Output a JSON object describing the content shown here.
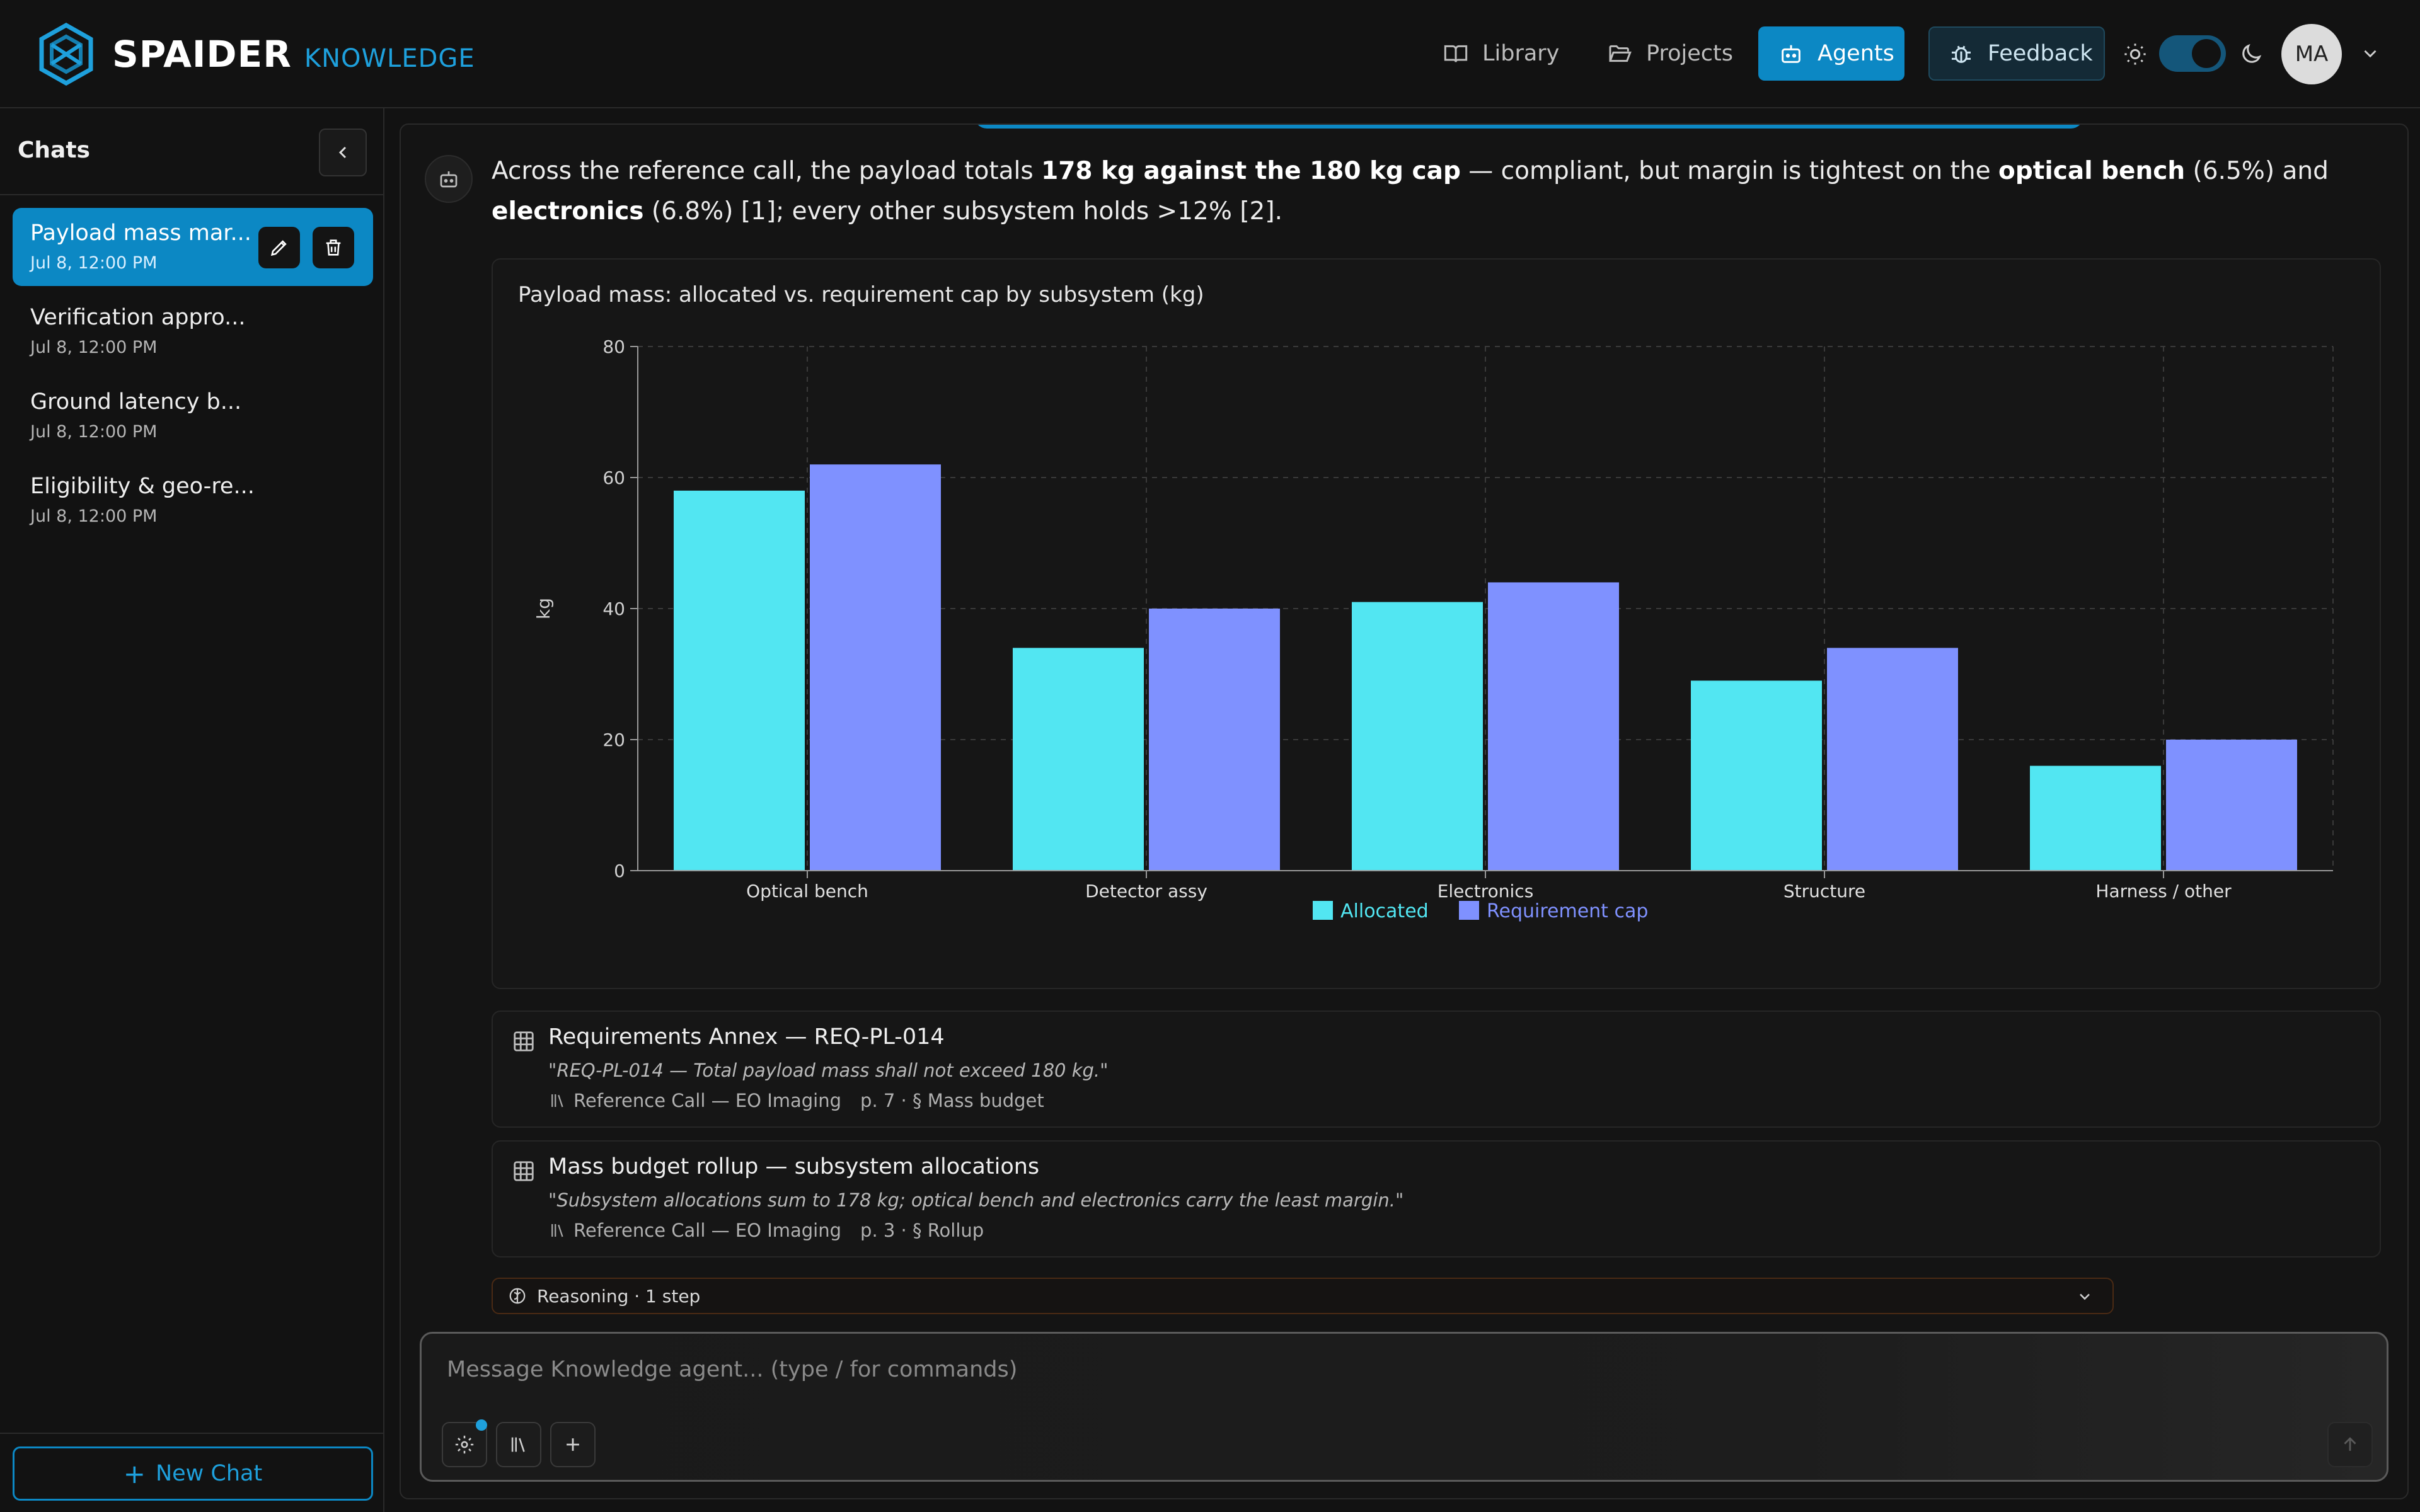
{
  "brand": {
    "name": "SPAIDER",
    "product": "KNOWLEDGE"
  },
  "nav": {
    "library": "Library",
    "projects": "Projects",
    "agents": "Agents",
    "feedback": "Feedback"
  },
  "theme": {
    "mode": "dark"
  },
  "user": {
    "initials": "MA"
  },
  "sidebar": {
    "title": "Chats",
    "chats": [
      {
        "title": "Payload mass mar...",
        "date": "Jul 8, 12:00 PM",
        "active": true
      },
      {
        "title": "Verification appro...",
        "date": "Jul 8, 12:00 PM",
        "active": false
      },
      {
        "title": "Ground latency b...",
        "date": "Jul 8, 12:00 PM",
        "active": false
      },
      {
        "title": "Eligibility & geo-re...",
        "date": "Jul 8, 12:00 PM",
        "active": false
      }
    ],
    "new_chat": "New Chat"
  },
  "answer": {
    "p1": "Across the reference call, the payload totals ",
    "b1": "178 kg against the 180 kg cap",
    "p2": " — compliant, but margin is tightest on the ",
    "b2": "optical bench",
    "p3": " (6.5%) and ",
    "b3": "electronics",
    "p4": " (6.8%) [1]; every other subsystem holds >12% [2]."
  },
  "chart_data": {
    "type": "bar",
    "title": "Payload mass: allocated vs. requirement cap by subsystem (kg)",
    "categories": [
      "Optical bench",
      "Detector assy",
      "Electronics",
      "Structure",
      "Harness / other"
    ],
    "series": [
      {
        "name": "Allocated",
        "values": [
          58,
          34,
          41,
          29,
          16
        ],
        "color": "#52e6f2"
      },
      {
        "name": "Requirement cap",
        "values": [
          62,
          40,
          44,
          34,
          20
        ],
        "color": "#7f91ff"
      }
    ],
    "ylabel": "kg",
    "xlabel": "",
    "ylim": [
      0,
      80
    ],
    "yticks": [
      0,
      20,
      40,
      60,
      80
    ],
    "grid": true,
    "legend": "bottom"
  },
  "sources": [
    {
      "title": "Requirements Annex — REQ-PL-014",
      "quote": "\"REQ-PL-014 — Total payload mass shall not exceed 180 kg.\"",
      "doc": "Reference Call — EO Imaging",
      "page": "p. 7 · § Mass budget"
    },
    {
      "title": "Mass budget rollup — subsystem allocations",
      "quote": "\"Subsystem allocations sum to 178 kg; optical bench and electronics carry the least margin.\"",
      "doc": "Reference Call — EO Imaging",
      "page": "p. 3 · § Rollup"
    }
  ],
  "reasoning": {
    "label": "Reasoning · 1 step"
  },
  "composer": {
    "placeholder": "Message Knowledge agent... (type / for commands)"
  }
}
